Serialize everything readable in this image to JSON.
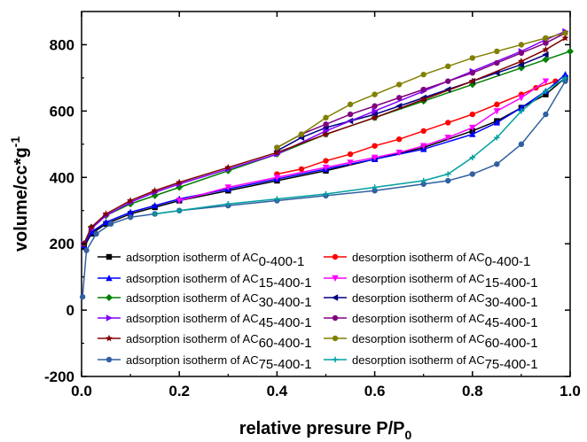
{
  "chart_data": {
    "type": "line",
    "xlabel": {
      "main": "relative presure P/P",
      "sub": "0"
    },
    "ylabel": {
      "main": "volume/cc*g",
      "sup": "-1"
    },
    "xlim": [
      0.0,
      1.0
    ],
    "ylim": [
      -200,
      900
    ],
    "x_ticks": [
      0.0,
      0.2,
      0.4,
      0.6,
      0.8,
      1.0
    ],
    "x_tick_labels": [
      "0.0",
      "0.2",
      "0.4",
      "0.6",
      "0.8",
      "1.0"
    ],
    "y_ticks": [
      -200,
      0,
      200,
      400,
      600,
      800
    ],
    "y_tick_labels": [
      "-200",
      "0",
      "200",
      "400",
      "600",
      "800"
    ],
    "grid": false,
    "legend_position": "lower-center",
    "series": [
      {
        "name": "adsorption isotherm of AC",
        "sub": "0-400-1",
        "color": "#000000",
        "marker": "square",
        "x": [
          0.005,
          0.02,
          0.05,
          0.1,
          0.15,
          0.2,
          0.3,
          0.4,
          0.5,
          0.6,
          0.7,
          0.8,
          0.85,
          0.9,
          0.95,
          0.99
        ],
        "y": [
          190,
          230,
          260,
          290,
          310,
          330,
          360,
          390,
          420,
          455,
          490,
          540,
          570,
          610,
          650,
          700
        ]
      },
      {
        "name": "desorption isotherm of AC",
        "sub": "0-400-1",
        "color": "#ff0000",
        "marker": "circle",
        "x": [
          0.97,
          0.93,
          0.9,
          0.85,
          0.8,
          0.75,
          0.7,
          0.65,
          0.6,
          0.55,
          0.5,
          0.45,
          0.4
        ],
        "y": [
          690,
          670,
          650,
          620,
          590,
          565,
          540,
          515,
          495,
          470,
          450,
          425,
          410
        ]
      },
      {
        "name": "adsorption isotherm of AC",
        "sub": "15-400-1",
        "color": "#0000ff",
        "marker": "triangle-up",
        "x": [
          0.005,
          0.02,
          0.05,
          0.1,
          0.15,
          0.2,
          0.3,
          0.4,
          0.5,
          0.6,
          0.7,
          0.8,
          0.85,
          0.9,
          0.95,
          0.99
        ],
        "y": [
          195,
          235,
          265,
          295,
          315,
          335,
          365,
          395,
          425,
          455,
          485,
          530,
          565,
          610,
          660,
          710
        ]
      },
      {
        "name": "desorption isotherm of AC",
        "sub": "15-400-1",
        "color": "#ff00ff",
        "marker": "triangle-down",
        "x": [
          0.95,
          0.9,
          0.85,
          0.8,
          0.75,
          0.7,
          0.65,
          0.6,
          0.55,
          0.5,
          0.4,
          0.3,
          0.2
        ],
        "y": [
          690,
          640,
          600,
          550,
          520,
          495,
          475,
          460,
          445,
          430,
          400,
          370,
          330
        ]
      },
      {
        "name": "adsorption isotherm of AC",
        "sub": "30-400-1",
        "color": "#008000",
        "marker": "diamond",
        "x": [
          0.005,
          0.02,
          0.05,
          0.1,
          0.15,
          0.2,
          0.3,
          0.4,
          0.5,
          0.6,
          0.7,
          0.8,
          0.9,
          0.95,
          1.0
        ],
        "y": [
          200,
          250,
          285,
          320,
          345,
          370,
          420,
          470,
          530,
          580,
          630,
          680,
          730,
          755,
          780
        ]
      },
      {
        "name": "desorption isotherm of AC",
        "sub": "30-400-1",
        "color": "#000080",
        "marker": "triangle-left",
        "x": [
          0.95,
          0.9,
          0.85,
          0.8,
          0.75,
          0.7,
          0.65,
          0.6,
          0.55,
          0.5,
          0.45,
          0.4
        ],
        "y": [
          770,
          740,
          715,
          690,
          665,
          640,
          615,
          590,
          570,
          550,
          520,
          480
        ]
      },
      {
        "name": "adsorption isotherm of AC",
        "sub": "45-400-1",
        "color": "#8000ff",
        "marker": "triangle-right",
        "x": [
          0.005,
          0.02,
          0.05,
          0.1,
          0.15,
          0.2,
          0.3,
          0.4,
          0.5,
          0.6,
          0.7,
          0.8,
          0.9,
          0.95,
          0.99
        ],
        "y": [
          200,
          245,
          285,
          325,
          355,
          380,
          425,
          470,
          540,
          600,
          660,
          720,
          780,
          815,
          840
        ]
      },
      {
        "name": "desorption isotherm of AC",
        "sub": "45-400-1",
        "color": "#800080",
        "marker": "circle",
        "x": [
          0.99,
          0.95,
          0.9,
          0.85,
          0.8,
          0.75,
          0.7,
          0.65,
          0.6,
          0.55,
          0.5,
          0.45,
          0.4
        ],
        "y": [
          835,
          805,
          775,
          745,
          715,
          690,
          665,
          640,
          615,
          590,
          560,
          530,
          490
        ]
      },
      {
        "name": "adsorption isotherm of AC",
        "sub": "60-400-1",
        "color": "#800000",
        "marker": "star",
        "x": [
          0.005,
          0.02,
          0.05,
          0.1,
          0.15,
          0.2,
          0.3,
          0.4,
          0.5,
          0.6,
          0.7,
          0.8,
          0.9,
          0.95,
          0.99
        ],
        "y": [
          200,
          250,
          290,
          330,
          360,
          385,
          430,
          475,
          530,
          580,
          635,
          690,
          750,
          785,
          820
        ]
      },
      {
        "name": "desorption isotherm of AC",
        "sub": "60-400-1",
        "color": "#808000",
        "marker": "circle",
        "x": [
          0.99,
          0.95,
          0.9,
          0.85,
          0.8,
          0.75,
          0.7,
          0.65,
          0.6,
          0.55,
          0.5,
          0.45,
          0.4
        ],
        "y": [
          835,
          820,
          800,
          780,
          760,
          735,
          710,
          680,
          650,
          620,
          580,
          530,
          490
        ]
      },
      {
        "name": "adsorption isotherm of AC",
        "sub": "75-400-1",
        "color": "#3060a0",
        "marker": "circle",
        "x": [
          0.002,
          0.01,
          0.03,
          0.06,
          0.1,
          0.15,
          0.2,
          0.3,
          0.4,
          0.5,
          0.6,
          0.7,
          0.75,
          0.8,
          0.85,
          0.9,
          0.95,
          0.99
        ],
        "y": [
          40,
          180,
          230,
          260,
          280,
          290,
          300,
          315,
          330,
          345,
          360,
          380,
          390,
          410,
          440,
          500,
          590,
          690
        ]
      },
      {
        "name": "desorption isotherm of AC",
        "sub": "75-400-1",
        "color": "#00a0a0",
        "marker": "plus",
        "x": [
          0.99,
          0.95,
          0.9,
          0.85,
          0.8,
          0.75,
          0.7,
          0.6,
          0.5,
          0.4,
          0.3,
          0.2,
          0.15
        ],
        "y": [
          700,
          660,
          600,
          520,
          460,
          410,
          390,
          370,
          350,
          335,
          320,
          300,
          290
        ]
      }
    ]
  }
}
